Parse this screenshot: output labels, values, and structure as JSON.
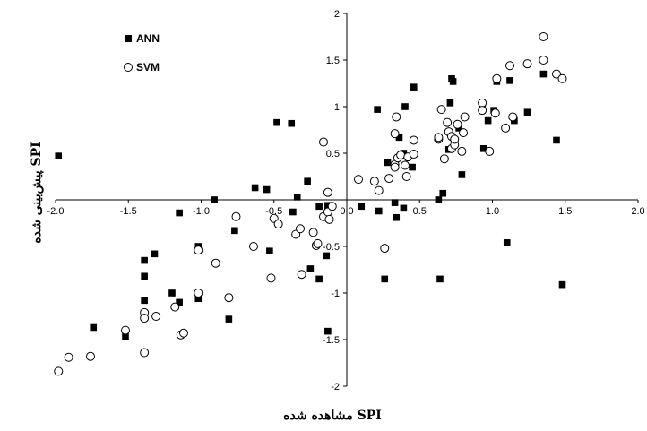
{
  "chart_data": {
    "type": "scatter",
    "title": "",
    "xlabel": "SPI مشاهده شده",
    "ylabel": "SPI پیش‌بینی شده",
    "xlim": [
      -2.0,
      2.0
    ],
    "ylim": [
      -2,
      2
    ],
    "x_ticks": [
      "-2.0",
      "-1.5",
      "-1.0",
      "-0.5",
      "0.0",
      "0.5",
      "1.0",
      "1.5",
      "2.0"
    ],
    "y_ticks": [
      "-2",
      "-1.5",
      "-1",
      "-0.5",
      "0",
      "0.5",
      "1",
      "1.5",
      "2"
    ],
    "grid": false,
    "legend_position": "top-left",
    "series": [
      {
        "name": "ANN",
        "marker": "filled-square",
        "color": "#000000",
        "points": [
          [
            -1.98,
            0.47
          ],
          [
            -1.74,
            -1.37
          ],
          [
            -1.52,
            -1.47
          ],
          [
            -1.39,
            -0.65
          ],
          [
            -1.39,
            -0.82
          ],
          [
            -1.39,
            -1.08
          ],
          [
            -1.32,
            -0.58
          ],
          [
            -1.2,
            -1.0
          ],
          [
            -1.15,
            -1.1
          ],
          [
            -1.15,
            -0.14
          ],
          [
            -1.02,
            -0.5
          ],
          [
            -1.02,
            -1.06
          ],
          [
            -0.91,
            0.0
          ],
          [
            -0.81,
            -1.28
          ],
          [
            -0.77,
            -0.33
          ],
          [
            -0.63,
            0.13
          ],
          [
            -0.55,
            0.11
          ],
          [
            -0.53,
            -0.55
          ],
          [
            -0.48,
            0.83
          ],
          [
            -0.38,
            0.82
          ],
          [
            -0.37,
            -0.13
          ],
          [
            -0.34,
            0.03
          ],
          [
            -0.27,
            0.2
          ],
          [
            -0.25,
            -0.74
          ],
          [
            -0.19,
            -0.07
          ],
          [
            -0.19,
            -0.85
          ],
          [
            -0.14,
            -0.6
          ],
          [
            -0.13,
            -1.41
          ],
          [
            -0.13,
            -0.06
          ],
          [
            0.1,
            -0.07
          ],
          [
            0.21,
            0.97
          ],
          [
            0.22,
            -0.12
          ],
          [
            0.26,
            -0.85
          ],
          [
            0.28,
            0.4
          ],
          [
            0.33,
            -0.03
          ],
          [
            0.34,
            -0.19
          ],
          [
            0.36,
            0.67
          ],
          [
            0.39,
            0.5
          ],
          [
            0.39,
            -0.09
          ],
          [
            0.4,
            1.0
          ],
          [
            0.45,
            0.35
          ],
          [
            0.46,
            1.21
          ],
          [
            0.63,
            0.0
          ],
          [
            0.64,
            -0.85
          ],
          [
            0.66,
            0.07
          ],
          [
            0.7,
            0.54
          ],
          [
            0.71,
            1.04
          ],
          [
            0.72,
            1.3
          ],
          [
            0.73,
            1.27
          ],
          [
            0.77,
            0.77
          ],
          [
            0.79,
            0.27
          ],
          [
            0.93,
            1.03
          ],
          [
            0.94,
            0.55
          ],
          [
            0.97,
            0.85
          ],
          [
            1.01,
            0.96
          ],
          [
            1.03,
            1.27
          ],
          [
            1.1,
            -0.46
          ],
          [
            1.12,
            1.28
          ],
          [
            1.15,
            0.85
          ],
          [
            1.24,
            0.94
          ],
          [
            1.35,
            1.35
          ],
          [
            1.44,
            0.64
          ],
          [
            1.48,
            -0.91
          ]
        ]
      },
      {
        "name": "SVM",
        "marker": "open-circle",
        "color": "#000000",
        "points": [
          [
            -1.98,
            -1.84
          ],
          [
            -1.91,
            -1.69
          ],
          [
            -1.76,
            -1.68
          ],
          [
            -1.52,
            -1.4
          ],
          [
            -1.39,
            -1.21
          ],
          [
            -1.39,
            -1.27
          ],
          [
            -1.39,
            -1.64
          ],
          [
            -1.31,
            -1.25
          ],
          [
            -1.18,
            -1.15
          ],
          [
            -1.14,
            -1.45
          ],
          [
            -1.12,
            -1.43
          ],
          [
            -1.02,
            -1.0
          ],
          [
            -1.02,
            -0.54
          ],
          [
            -0.9,
            -0.68
          ],
          [
            -0.81,
            -1.05
          ],
          [
            -0.76,
            -0.18
          ],
          [
            -0.64,
            -0.5
          ],
          [
            -0.52,
            -0.84
          ],
          [
            -0.5,
            -0.2
          ],
          [
            -0.47,
            -0.26
          ],
          [
            -0.35,
            -0.37
          ],
          [
            -0.32,
            -0.31
          ],
          [
            -0.31,
            -0.8
          ],
          [
            -0.23,
            -0.35
          ],
          [
            -0.21,
            -0.49
          ],
          [
            -0.2,
            -0.47
          ],
          [
            -0.16,
            0.62
          ],
          [
            -0.16,
            -0.18
          ],
          [
            -0.13,
            0.08
          ],
          [
            -0.13,
            -0.13
          ],
          [
            -0.12,
            -0.21
          ],
          [
            -0.1,
            -0.07
          ],
          [
            0.08,
            0.22
          ],
          [
            0.19,
            0.2
          ],
          [
            0.22,
            0.1
          ],
          [
            0.26,
            -0.52
          ],
          [
            0.29,
            0.23
          ],
          [
            0.33,
            0.38
          ],
          [
            0.33,
            0.35
          ],
          [
            0.33,
            0.71
          ],
          [
            0.34,
            0.89
          ],
          [
            0.35,
            0.45
          ],
          [
            0.37,
            0.48
          ],
          [
            0.4,
            0.37
          ],
          [
            0.41,
            0.25
          ],
          [
            0.42,
            0.46
          ],
          [
            0.46,
            0.49
          ],
          [
            0.46,
            0.64
          ],
          [
            0.63,
            0.65
          ],
          [
            0.63,
            0.67
          ],
          [
            0.65,
            0.97
          ],
          [
            0.67,
            0.44
          ],
          [
            0.69,
            0.83
          ],
          [
            0.7,
            0.73
          ],
          [
            0.72,
            0.68
          ],
          [
            0.72,
            0.55
          ],
          [
            0.74,
            0.59
          ],
          [
            0.74,
            0.65
          ],
          [
            0.76,
            0.81
          ],
          [
            0.79,
            0.52
          ],
          [
            0.8,
            0.72
          ],
          [
            0.81,
            0.89
          ],
          [
            0.93,
            1.04
          ],
          [
            0.93,
            0.96
          ],
          [
            0.98,
            0.52
          ],
          [
            1.02,
            0.93
          ],
          [
            1.03,
            1.3
          ],
          [
            1.09,
            0.77
          ],
          [
            1.12,
            1.44
          ],
          [
            1.14,
            0.89
          ],
          [
            1.24,
            1.46
          ],
          [
            1.35,
            1.5
          ],
          [
            1.35,
            1.75
          ],
          [
            1.44,
            1.35
          ],
          [
            1.48,
            1.3
          ]
        ]
      }
    ]
  }
}
